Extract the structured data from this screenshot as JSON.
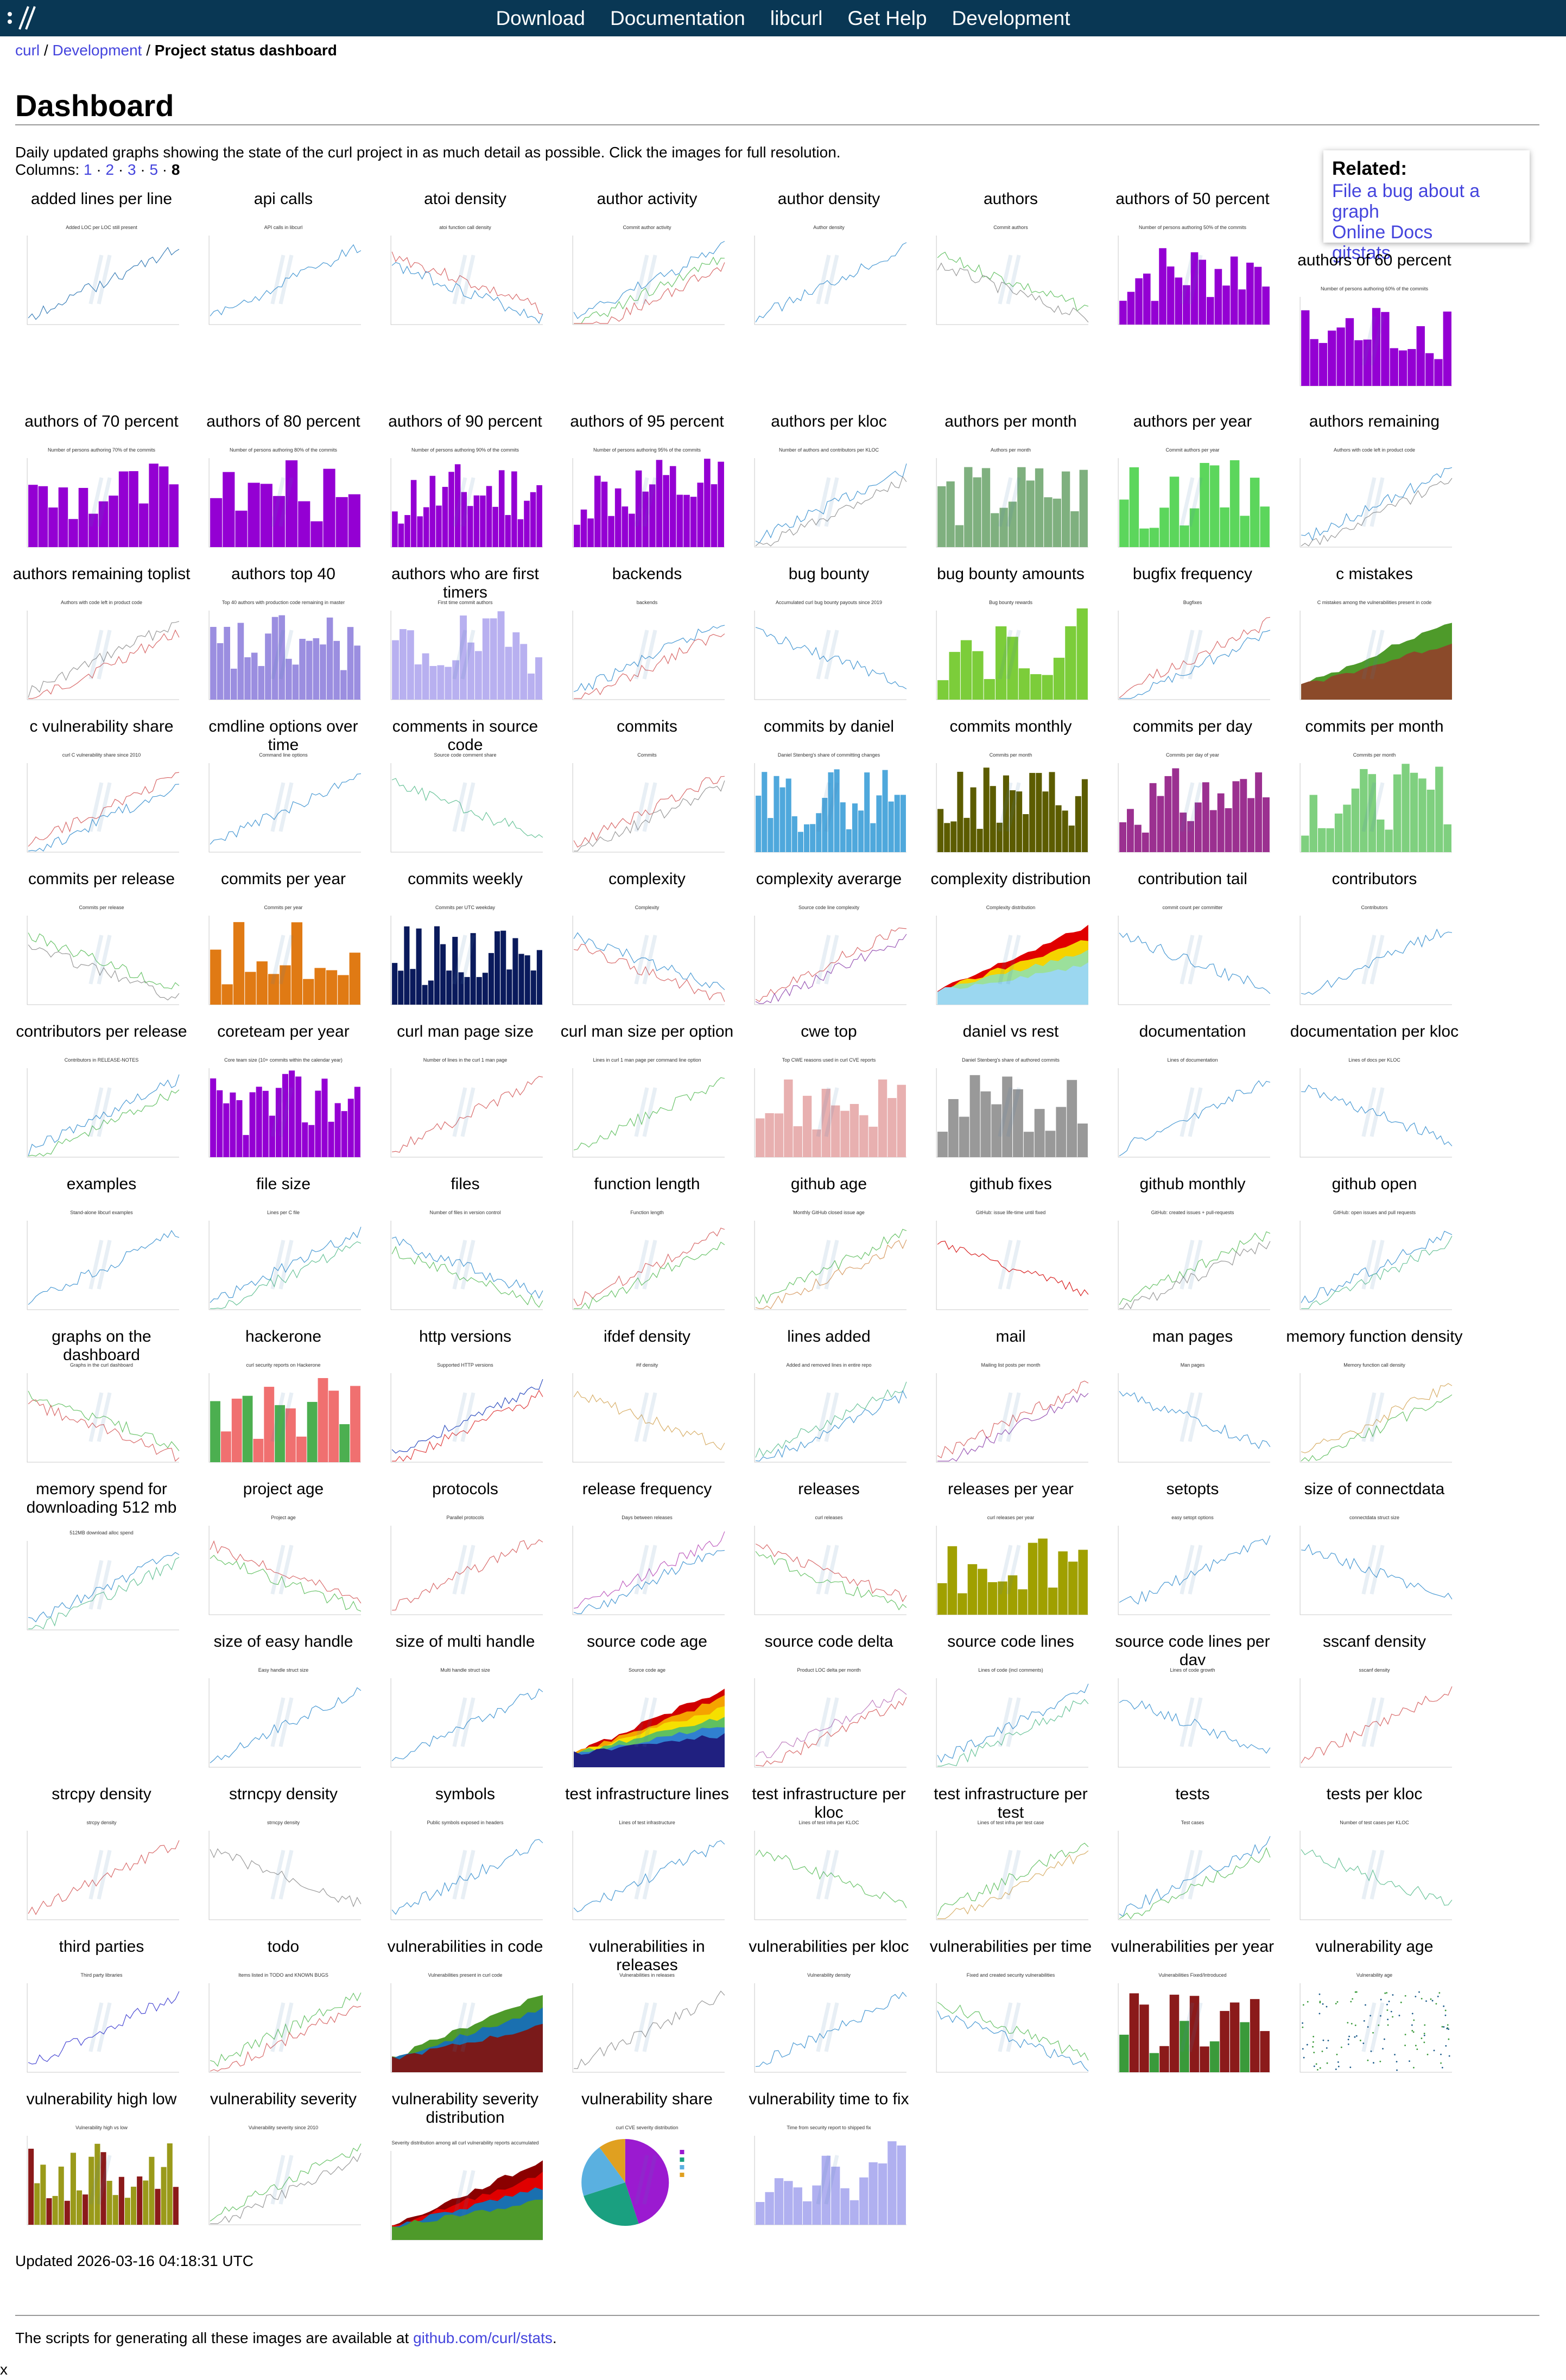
{
  "nav": [
    "Download",
    "Documentation",
    "libcurl",
    "Get Help",
    "Development"
  ],
  "breadcrumb": {
    "home": "curl",
    "section": "Development",
    "current": "Project status dashboard"
  },
  "page_title": "Dashboard",
  "intro": "Daily updated graphs showing the state of the curl project in as much detail as possible. Click the images for full resolution.",
  "columns": {
    "label": "Columns:",
    "options": [
      "1",
      "2",
      "3",
      "5"
    ],
    "current": "8"
  },
  "related": {
    "title": "Related:",
    "links": [
      "File a bug about a graph",
      "Online Docs",
      "gitstats"
    ]
  },
  "graphs": [
    {
      "label": "added lines per line",
      "title": "Added LOC per LOC still present",
      "kind": "line",
      "colors": [
        "#3b7fb8"
      ]
    },
    {
      "label": "api calls",
      "title": "API calls in libcurl",
      "kind": "line",
      "colors": [
        "#4a9ad4"
      ]
    },
    {
      "label": "atoi density",
      "title": "atoi function call density",
      "kind": "line",
      "colors": [
        "#d96b6b",
        "#4a9ad4"
      ]
    },
    {
      "label": "author activity",
      "title": "Commit author activity",
      "kind": "line",
      "colors": [
        "#4a9ad4",
        "#6bc46b",
        "#d96b6b"
      ]
    },
    {
      "label": "author density",
      "title": "Author density",
      "kind": "line",
      "colors": [
        "#4a9ad4"
      ]
    },
    {
      "label": "authors",
      "title": "Commit authors",
      "kind": "line",
      "colors": [
        "#6bc46b",
        "#999999"
      ]
    },
    {
      "label": "authors of 50 percent",
      "title": "Number of persons authoring 50% of the commits",
      "kind": "bar",
      "colors": [
        "#9400d3"
      ]
    },
    {
      "label": "authors of 60 percent",
      "title": "Number of persons authoring 60% of the commits",
      "kind": "bar",
      "colors": [
        "#9400d3"
      ]
    },
    {
      "label": "authors of 70 percent",
      "title": "Number of persons authoring 70% of the commits",
      "kind": "bar",
      "colors": [
        "#9400d3"
      ]
    },
    {
      "label": "authors of 80 percent",
      "title": "Number of persons authoring 80% of the commits",
      "kind": "bar",
      "colors": [
        "#9400d3"
      ]
    },
    {
      "label": "authors of 90 percent",
      "title": "Number of persons authoring 90% of the commits",
      "kind": "bar",
      "colors": [
        "#9400d3"
      ]
    },
    {
      "label": "authors of 95 percent",
      "title": "Number of persons authoring 95% of the commits",
      "kind": "bar",
      "colors": [
        "#9400d3"
      ]
    },
    {
      "label": "authors per kloc",
      "title": "Number of authors and contributors per KLOC",
      "kind": "line",
      "colors": [
        "#4a9ad4",
        "#999999"
      ]
    },
    {
      "label": "authors per month",
      "title": "Authors per month",
      "kind": "bar",
      "colors": [
        "#7fb07f"
      ]
    },
    {
      "label": "authors per year",
      "title": "Commit authors per year",
      "kind": "bar",
      "colors": [
        "#5cd65c"
      ]
    },
    {
      "label": "authors remaining",
      "title": "Authors with code left in product code",
      "kind": "line",
      "colors": [
        "#4a9ad4",
        "#999999"
      ]
    },
    {
      "label": "authors remaining toplist",
      "title": "Authors with code left in product code",
      "kind": "line",
      "colors": [
        "#999999",
        "#d96b6b"
      ]
    },
    {
      "label": "authors top 40",
      "title": "Top 40 authors with production code remaining in master",
      "kind": "bar",
      "colors": [
        "#9b8ee0"
      ]
    },
    {
      "label": "authors who are first timers",
      "title": "First time commit authors",
      "kind": "bar",
      "colors": [
        "#b8b0f0"
      ]
    },
    {
      "label": "backends",
      "title": "backends",
      "kind": "line",
      "colors": [
        "#4a9ad4",
        "#d96b6b"
      ]
    },
    {
      "label": "bug bounty",
      "title": "Accumulated curl bug bounty payouts since 2019",
      "kind": "line",
      "colors": [
        "#4a9ad4"
      ]
    },
    {
      "label": "bug bounty amounts",
      "title": "Bug bounty rewards",
      "kind": "bar",
      "colors": [
        "#7ccd3a"
      ]
    },
    {
      "label": "bugfix frequency",
      "title": "Bugfixes",
      "kind": "line",
      "colors": [
        "#d96b6b",
        "#4a9ad4"
      ]
    },
    {
      "label": "c mistakes",
      "title": "C mistakes among the vulnerabilities present in code",
      "kind": "area",
      "colors": [
        "#4e9a2a",
        "#8b4a2a"
      ]
    },
    {
      "label": "c vulnerability share",
      "title": "curl C vulnerability share since 2010",
      "kind": "line",
      "colors": [
        "#d96b6b",
        "#4a9ad4"
      ]
    },
    {
      "label": "cmdline options over time",
      "title": "Command line options",
      "kind": "line",
      "colors": [
        "#4a9ad4"
      ]
    },
    {
      "label": "comments in source code",
      "title": "Source code comment share",
      "kind": "line",
      "colors": [
        "#6bc49a"
      ]
    },
    {
      "label": "commits",
      "title": "Commits",
      "kind": "line",
      "colors": [
        "#d96b6b",
        "#999999"
      ]
    },
    {
      "label": "commits by daniel",
      "title": "Daniel Stenberg's share of committing changes",
      "kind": "bar",
      "colors": [
        "#4fa8dc"
      ]
    },
    {
      "label": "commits monthly",
      "title": "Commits per month",
      "kind": "bar",
      "colors": [
        "#5c5c00"
      ]
    },
    {
      "label": "commits per day",
      "title": "Commits per day of year",
      "kind": "bar",
      "colors": [
        "#9b3090"
      ]
    },
    {
      "label": "commits per month",
      "title": "Commits per month",
      "kind": "bar",
      "colors": [
        "#7fd07f"
      ]
    },
    {
      "label": "commits per release",
      "title": "Commits per release",
      "kind": "line",
      "colors": [
        "#6bc46b",
        "#999999"
      ]
    },
    {
      "label": "commits per year",
      "title": "Commits per year",
      "kind": "bar",
      "colors": [
        "#e07a14"
      ]
    },
    {
      "label": "commits weekly",
      "title": "Commits per UTC weekday",
      "kind": "bar",
      "colors": [
        "#0a1a5c"
      ]
    },
    {
      "label": "complexity",
      "title": "Complexity",
      "kind": "line",
      "colors": [
        "#4a9ad4",
        "#d96b6b"
      ]
    },
    {
      "label": "complexity averarge",
      "title": "Source code line complexity",
      "kind": "line",
      "colors": [
        "#d96b6b",
        "#9b59b6"
      ]
    },
    {
      "label": "complexity distribution",
      "title": "Complexity distribution",
      "kind": "area",
      "colors": [
        "#e00000",
        "#f5d300",
        "#9be09b",
        "#9bd7f0"
      ]
    },
    {
      "label": "contribution tail",
      "title": "commit count per committer",
      "kind": "line",
      "colors": [
        "#4a9ad4"
      ]
    },
    {
      "label": "contributors",
      "title": "Contributors",
      "kind": "line",
      "colors": [
        "#4a9ad4"
      ]
    },
    {
      "label": "contributors per release",
      "title": "Contributors in RELEASE-NOTES",
      "kind": "line",
      "colors": [
        "#4a9ad4",
        "#6bc46b"
      ]
    },
    {
      "label": "coreteam per year",
      "title": "Core team size (10+ commits within the calendar year)",
      "kind": "bar",
      "colors": [
        "#9400d3"
      ]
    },
    {
      "label": "curl man page size",
      "title": "Number of lines in the curl 1 man page",
      "kind": "line",
      "colors": [
        "#d96b6b"
      ]
    },
    {
      "label": "curl man size per option",
      "title": "Lines in curl 1 man page per command line option",
      "kind": "line",
      "colors": [
        "#6bc46b"
      ]
    },
    {
      "label": "cwe top",
      "title": "Top CWE reasons used in curl CVE reports",
      "kind": "bar",
      "colors": [
        "#e8b0b0"
      ]
    },
    {
      "label": "daniel vs rest",
      "title": "Daniel Stenberg's share of authored commits",
      "kind": "bar",
      "colors": [
        "#999999"
      ]
    },
    {
      "label": "documentation",
      "title": "Lines of documentation",
      "kind": "line",
      "colors": [
        "#4a9ad4"
      ]
    },
    {
      "label": "documentation per kloc",
      "title": "Lines of docs per KLOC",
      "kind": "line",
      "colors": [
        "#4a9ad4"
      ]
    },
    {
      "label": "examples",
      "title": "Stand-alone libcurl examples",
      "kind": "line",
      "colors": [
        "#4a9ad4"
      ]
    },
    {
      "label": "file size",
      "title": "Lines per C file",
      "kind": "line",
      "colors": [
        "#4a9ad4",
        "#6bc49a"
      ]
    },
    {
      "label": "files",
      "title": "Number of files in version control",
      "kind": "line",
      "colors": [
        "#4a9ad4",
        "#6bc46b"
      ]
    },
    {
      "label": "function length",
      "title": "Function length",
      "kind": "line",
      "colors": [
        "#d96b6b",
        "#6bc46b"
      ]
    },
    {
      "label": "github age",
      "title": "Monthly GitHub closed issue age",
      "kind": "line",
      "colors": [
        "#6bc46b",
        "#d9a06b"
      ]
    },
    {
      "label": "github fixes",
      "title": "GitHub: issue life-time until fixed",
      "kind": "line",
      "colors": [
        "#d92020"
      ]
    },
    {
      "label": "github monthly",
      "title": "GitHub: created issues + pull-requests",
      "kind": "line",
      "colors": [
        "#6bc46b",
        "#999999"
      ]
    },
    {
      "label": "github open",
      "title": "GitHub: open issues and pull requests",
      "kind": "line",
      "colors": [
        "#4a9ad4",
        "#6bc49a"
      ]
    },
    {
      "label": "graphs on the dashboard",
      "title": "Graphs in the curl dashboard",
      "kind": "line",
      "colors": [
        "#6bc46b",
        "#d96b6b"
      ]
    },
    {
      "label": "hackerone",
      "title": "curl security reports on Hackerone",
      "kind": "bar",
      "colors": [
        "#f07070",
        "#4caf50"
      ]
    },
    {
      "label": "http versions",
      "title": "Supported HTTP versions",
      "kind": "line",
      "colors": [
        "#3050c0",
        "#e04040"
      ]
    },
    {
      "label": "ifdef density",
      "title": "#if density",
      "kind": "line",
      "colors": [
        "#d9b06b"
      ]
    },
    {
      "label": "lines added",
      "title": "Added and removed lines in entire repo",
      "kind": "line",
      "colors": [
        "#6bc49a",
        "#4a9ad4"
      ]
    },
    {
      "label": "mail",
      "title": "Mailing list posts per month",
      "kind": "line",
      "colors": [
        "#d96b6b",
        "#9b59b6"
      ]
    },
    {
      "label": "man pages",
      "title": "Man pages",
      "kind": "line",
      "colors": [
        "#4a9ad4"
      ]
    },
    {
      "label": "memory function density",
      "title": "Memory function call density",
      "kind": "line",
      "colors": [
        "#d9b06b",
        "#6bc46b"
      ]
    },
    {
      "label": "memory spend for downloading 512 mb",
      "title": "512MB download alloc spend",
      "kind": "line",
      "colors": [
        "#4a9ad4",
        "#6bc49a"
      ]
    },
    {
      "label": "project age",
      "title": "Project age",
      "kind": "line",
      "colors": [
        "#d96b6b",
        "#6bc46b"
      ]
    },
    {
      "label": "protocols",
      "title": "Parallel protocols",
      "kind": "line",
      "colors": [
        "#d96b6b"
      ]
    },
    {
      "label": "release frequency",
      "title": "Days between releases",
      "kind": "line",
      "colors": [
        "#c060c0",
        "#4a9ad4"
      ]
    },
    {
      "label": "releases",
      "title": "curl releases",
      "kind": "line",
      "colors": [
        "#d96b6b",
        "#6bc46b"
      ]
    },
    {
      "label": "releases per year",
      "title": "curl releases per year",
      "kind": "bar",
      "colors": [
        "#a0a000"
      ]
    },
    {
      "label": "setopts",
      "title": "easy setopt options",
      "kind": "line",
      "colors": [
        "#4a9ad4"
      ]
    },
    {
      "label": "size of connectdata",
      "title": "connectdata struct size",
      "kind": "line",
      "colors": [
        "#4a9ad4"
      ]
    },
    {
      "label": "size of easy handle",
      "title": "Easy handle struct size",
      "kind": "line",
      "colors": [
        "#4a9ad4"
      ]
    },
    {
      "label": "size of multi handle",
      "title": "Multi handle struct size",
      "kind": "line",
      "colors": [
        "#4a9ad4"
      ]
    },
    {
      "label": "source code age",
      "title": "Source code age",
      "kind": "area",
      "colors": [
        "#d00000",
        "#f5a300",
        "#f5e000",
        "#60c060",
        "#3080d0",
        "#202080"
      ]
    },
    {
      "label": "source code delta",
      "title": "Product LOC delta per month",
      "kind": "line",
      "colors": [
        "#c080c0",
        "#d96b6b"
      ]
    },
    {
      "label": "source code lines",
      "title": "Lines of code (incl comments)",
      "kind": "line",
      "colors": [
        "#4a9ad4",
        "#6bc49a"
      ]
    },
    {
      "label": "source code lines per day",
      "title": "Lines of code growth",
      "kind": "line",
      "colors": [
        "#4a9ad4"
      ]
    },
    {
      "label": "sscanf density",
      "title": "sscanf density",
      "kind": "line",
      "colors": [
        "#d96b6b"
      ]
    },
    {
      "label": "strcpy density",
      "title": "strcpy density",
      "kind": "line",
      "colors": [
        "#d96b6b"
      ]
    },
    {
      "label": "strncpy density",
      "title": "strncpy density",
      "kind": "line",
      "colors": [
        "#999999"
      ]
    },
    {
      "label": "symbols",
      "title": "Public symbols exposed in headers",
      "kind": "line",
      "colors": [
        "#4a9ad4"
      ]
    },
    {
      "label": "test infrastructure lines",
      "title": "Lines of test infrastructure",
      "kind": "line",
      "colors": [
        "#4a9ad4"
      ]
    },
    {
      "label": "test infrastructure per kloc",
      "title": "Lines of test infra per KLOC",
      "kind": "line",
      "colors": [
        "#6bc46b"
      ]
    },
    {
      "label": "test infrastructure per test",
      "title": "Lines of test infra per test case",
      "kind": "line",
      "colors": [
        "#6bc46b",
        "#d9b06b"
      ]
    },
    {
      "label": "tests",
      "title": "Test cases",
      "kind": "line",
      "colors": [
        "#4a9ad4",
        "#6bc46b"
      ]
    },
    {
      "label": "tests per kloc",
      "title": "Number of test cases per KLOC",
      "kind": "line",
      "colors": [
        "#6bc49a"
      ]
    },
    {
      "label": "third parties",
      "title": "Third party libraries",
      "kind": "line",
      "colors": [
        "#4a4ad4"
      ]
    },
    {
      "label": "todo",
      "title": "Items listed in TODO and KNOWN BUGS",
      "kind": "line",
      "colors": [
        "#6bc46b",
        "#d96b6b"
      ]
    },
    {
      "label": "vulnerabilities in code",
      "title": "Vulnerabilities present in curl code",
      "kind": "area",
      "colors": [
        "#4e9a2a",
        "#1a70b0",
        "#7a1a1a"
      ]
    },
    {
      "label": "vulnerabilities in releases",
      "title": "Vulnerabilities in releases",
      "kind": "line",
      "colors": [
        "#999999"
      ]
    },
    {
      "label": "vulnerabilities per kloc",
      "title": "Vulnerability density",
      "kind": "line",
      "colors": [
        "#4a9ad4"
      ]
    },
    {
      "label": "vulnerabilities per time",
      "title": "Fixed and created security vulnerabilities",
      "kind": "line",
      "colors": [
        "#6bc46b",
        "#4a9ad4"
      ]
    },
    {
      "label": "vulnerabilities per year",
      "title": "Vulnerabilities Fixed/Introduced",
      "kind": "bar",
      "colors": [
        "#8b1a1a",
        "#3a9a3a"
      ]
    },
    {
      "label": "vulnerability age",
      "title": "Vulnerability age",
      "kind": "scatter",
      "colors": [
        "#1a5a8a",
        "#3a9a3a"
      ]
    },
    {
      "label": "vulnerability high low",
      "title": "Vulnerability high vs low",
      "kind": "bar",
      "colors": [
        "#9a9a1a",
        "#8b1a1a"
      ]
    },
    {
      "label": "vulnerability severity",
      "title": "Vulnerability severity since 2010",
      "kind": "line",
      "colors": [
        "#6bc46b",
        "#999999"
      ]
    },
    {
      "label": "vulnerability severity distribution",
      "title": "Severity distribution among all curl vulnerability reports accumulated",
      "kind": "area",
      "colors": [
        "#8b0000",
        "#e00000",
        "#1a70b0",
        "#4e9a2a"
      ]
    },
    {
      "label": "vulnerability share",
      "title": "curl CVE severity distribution",
      "kind": "pie",
      "colors": [
        "#9b1ad0",
        "#1aa080",
        "#5ab0e0",
        "#e0a020"
      ]
    },
    {
      "label": "vulnerability time to fix",
      "title": "Time from security report to shipped fix",
      "kind": "bar",
      "colors": [
        "#b0b0f0"
      ]
    }
  ],
  "updated": "Updated 2026-03-16 04:18:31 UTC",
  "footer": {
    "text_before": "The scripts for generating all these images are available at ",
    "link": "github.com/curl/stats",
    "text_after": "."
  },
  "corner_mark": "x"
}
